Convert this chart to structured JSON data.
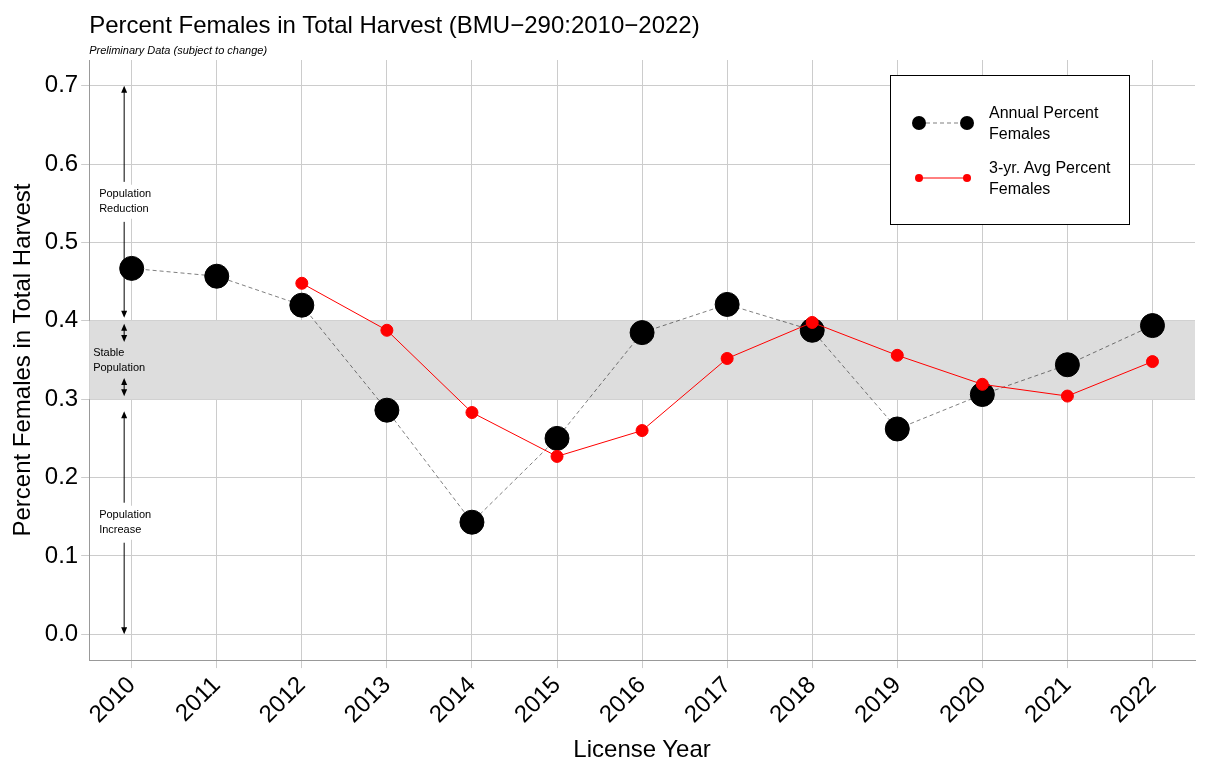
{
  "chart_data": {
    "type": "line",
    "title": "Percent Females in Total Harvest (BMU−290:2010−2022)",
    "subtitle": "Preliminary Data (subject to change)",
    "xlabel": "License Year",
    "ylabel": "Percent Females in Total Harvest",
    "categories": [
      "2010",
      "2011",
      "2012",
      "2013",
      "2014",
      "2015",
      "2016",
      "2017",
      "2018",
      "2019",
      "2020",
      "2021",
      "2022"
    ],
    "series": [
      {
        "name": "Annual Percent Females",
        "color": "#000000",
        "line_style": "dashed",
        "marker": "circle",
        "values": [
          0.467,
          0.457,
          0.42,
          0.286,
          0.143,
          0.25,
          0.385,
          0.421,
          0.388,
          0.262,
          0.306,
          0.344,
          0.394
        ]
      },
      {
        "name": "3-yr. Avg Percent Females",
        "color": "#ff0000",
        "line_style": "solid",
        "marker": "circle",
        "values": [
          null,
          null,
          0.448,
          0.388,
          0.283,
          0.227,
          0.26,
          0.352,
          0.398,
          0.356,
          0.319,
          0.304,
          0.348
        ]
      }
    ],
    "ylim": [
      -0.033,
      0.733
    ],
    "yticks": [
      {
        "value": 0,
        "label": "0.0"
      },
      0.1,
      0.2,
      0.3,
      0.4,
      0.5,
      0.6,
      0.7
    ],
    "bands": [
      {
        "axis": "y",
        "from": 0.3,
        "to": 0.4,
        "label": "Stable Population",
        "color": "#dddddd"
      }
    ],
    "annotations": [
      "Population Reduction",
      "Population Increase"
    ],
    "grid": true,
    "legend": "top right"
  }
}
